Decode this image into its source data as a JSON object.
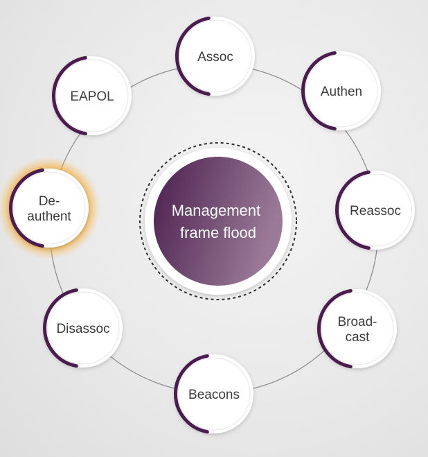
{
  "diagram": {
    "center": {
      "label_lines": [
        "Management",
        "frame flood"
      ]
    },
    "nodes": [
      {
        "id": "assoc",
        "lines": [
          "Assoc"
        ],
        "highlighted": false
      },
      {
        "id": "authen",
        "lines": [
          "Authen"
        ],
        "highlighted": false
      },
      {
        "id": "reassoc",
        "lines": [
          "Reassoc"
        ],
        "highlighted": false
      },
      {
        "id": "broadcast",
        "lines": [
          "Broad-",
          "cast"
        ],
        "highlighted": false
      },
      {
        "id": "beacons",
        "lines": [
          "Beacons"
        ],
        "highlighted": false
      },
      {
        "id": "disassoc",
        "lines": [
          "Disassoc"
        ],
        "highlighted": false
      },
      {
        "id": "deauthent",
        "lines": [
          "De-",
          "authent"
        ],
        "highlighted": true
      },
      {
        "id": "eapol",
        "lines": [
          "EAPOL"
        ],
        "highlighted": false
      }
    ]
  },
  "colors": {
    "accent": "#4a1d4e",
    "center_start": "#4a1f4e",
    "center_end": "#9a7a97",
    "highlight_glow": "#f4a52a",
    "node_fill": "#ffffff",
    "ring_line": "#8f8f8f",
    "text": "#3b3b3b"
  }
}
